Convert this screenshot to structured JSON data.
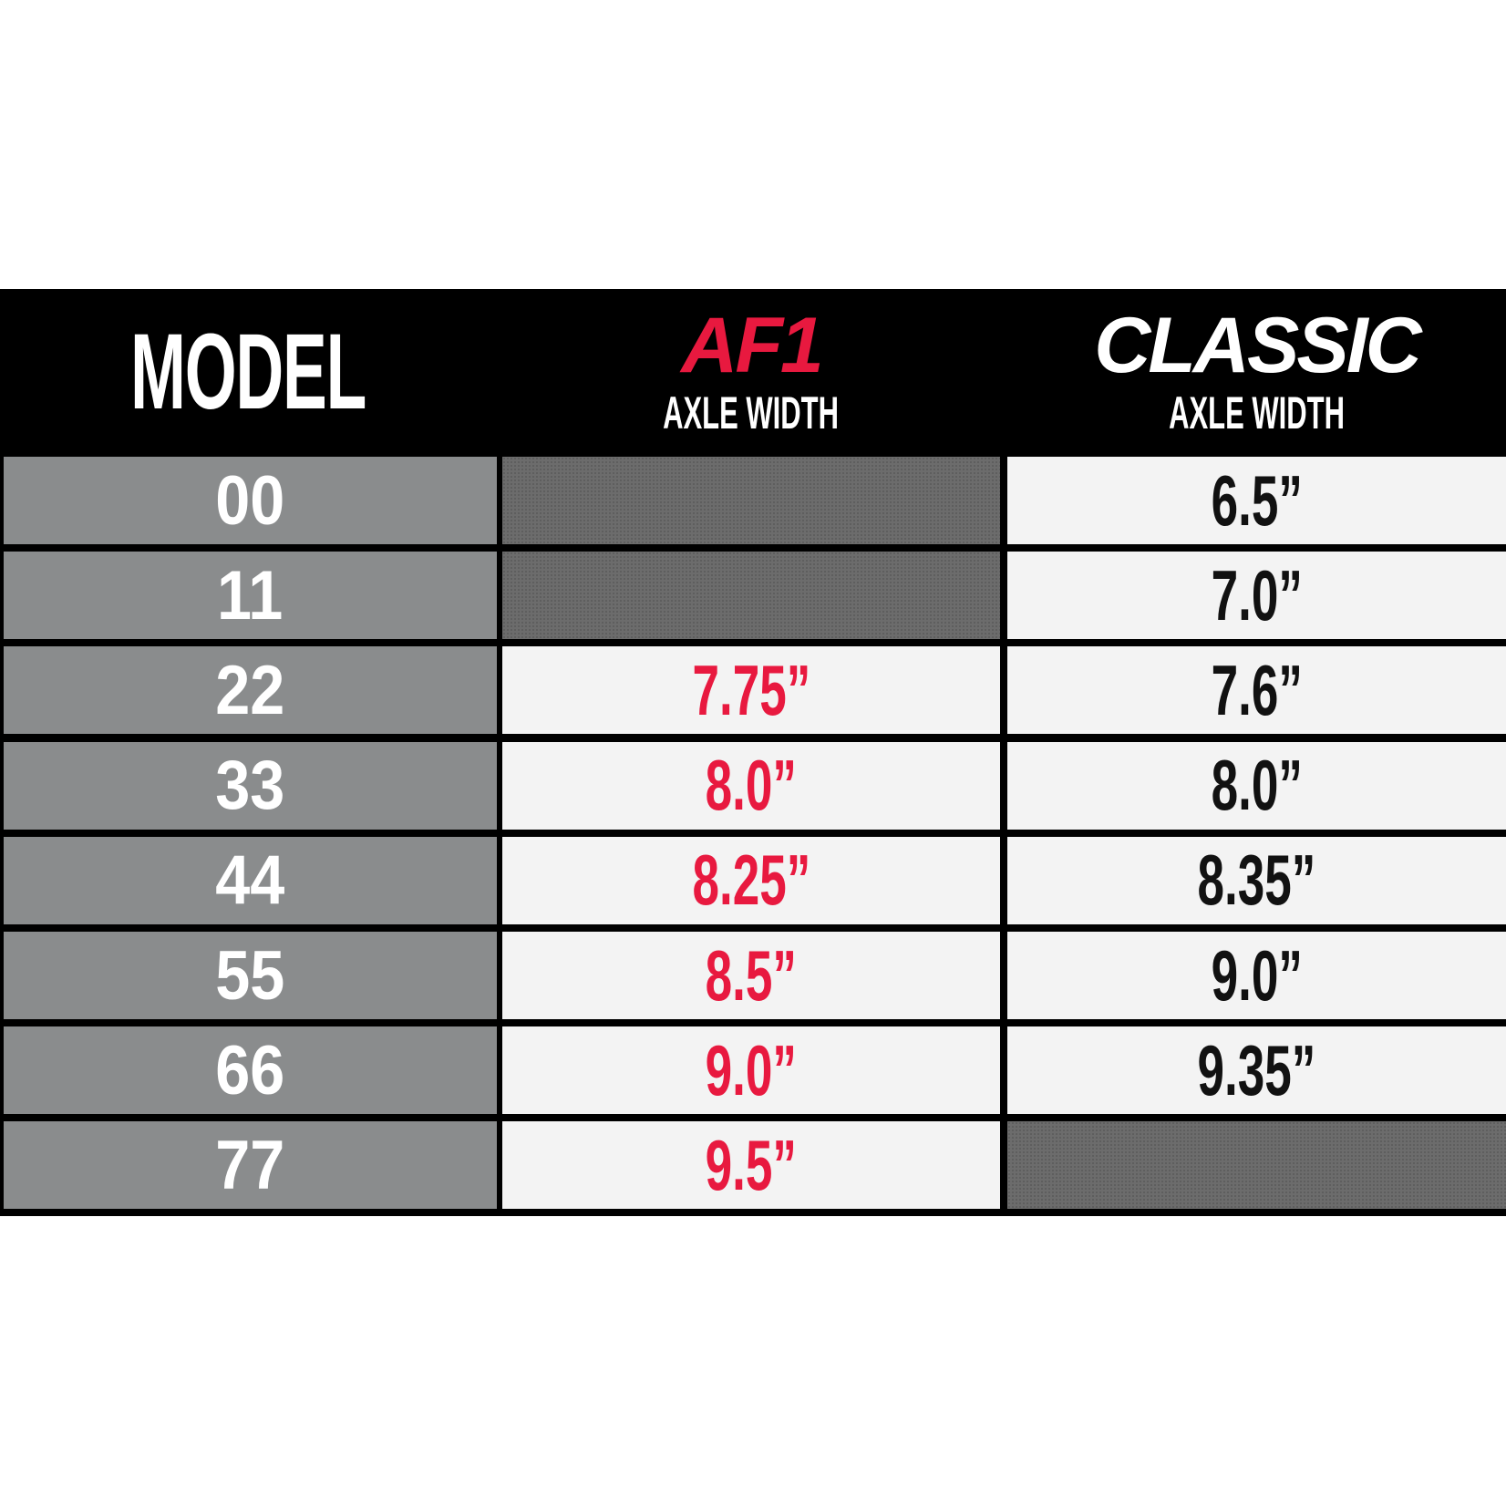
{
  "header": {
    "model": "MODEL",
    "af1": "AF1",
    "af1_sub": "AXLE WIDTH",
    "classic": "CLASSIC",
    "classic_sub": "AXLE WIDTH"
  },
  "colors": {
    "af1": "#e8193f",
    "classic_value": "#111111",
    "model_bg": "#8a8c8d"
  },
  "rows": [
    {
      "model": "00",
      "af1": null,
      "classic": "6.5”"
    },
    {
      "model": "11",
      "af1": null,
      "classic": "7.0”"
    },
    {
      "model": "22",
      "af1": "7.75”",
      "classic": "7.6”"
    },
    {
      "model": "33",
      "af1": "8.0”",
      "classic": "8.0”"
    },
    {
      "model": "44",
      "af1": "8.25”",
      "classic": "8.35”"
    },
    {
      "model": "55",
      "af1": "8.5”",
      "classic": "9.0”"
    },
    {
      "model": "66",
      "af1": "9.0”",
      "classic": "9.35”"
    },
    {
      "model": "77",
      "af1": "9.5”",
      "classic": null
    }
  ]
}
